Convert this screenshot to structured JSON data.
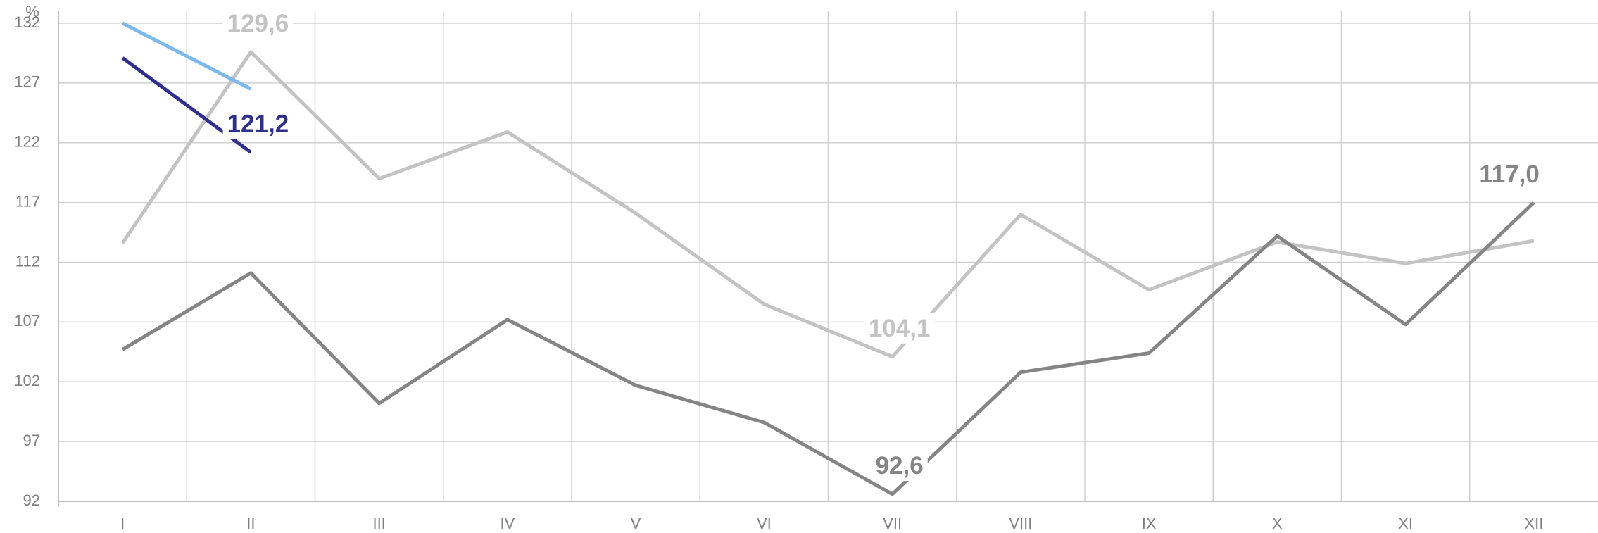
{
  "chart_data": {
    "type": "line",
    "y_label": "%",
    "categories": [
      "I",
      "II",
      "III",
      "IV",
      "V",
      "VI",
      "VII",
      "VIII",
      "IX",
      "X",
      "XI",
      "XII"
    ],
    "series": [
      {
        "color": "#c3c3c3",
        "values": [
          113.6,
          129.6,
          119.0,
          122.9,
          116.1,
          108.5,
          104.1,
          116.0,
          109.7,
          113.7,
          111.9,
          113.8
        ],
        "value_labels": [
          null,
          "129,6",
          null,
          null,
          null,
          null,
          "104,1",
          null,
          null,
          null,
          null,
          null
        ]
      },
      {
        "color": "#858585",
        "values": [
          104.7,
          111.1,
          100.2,
          107.2,
          101.7,
          98.6,
          92.6,
          102.8,
          104.4,
          114.2,
          106.8,
          117.0
        ],
        "value_labels": [
          null,
          null,
          null,
          null,
          null,
          null,
          "92,6",
          null,
          null,
          null,
          null,
          "117,0"
        ]
      },
      {
        "color": "#2f2f8c",
        "values": [
          129.1,
          121.2,
          null,
          null,
          null,
          null,
          null,
          null,
          null,
          null,
          null,
          null
        ],
        "value_labels": [
          null,
          "121,2",
          null,
          null,
          null,
          null,
          null,
          null,
          null,
          null,
          null,
          null
        ]
      },
      {
        "color": "#7ab8ee",
        "values": [
          132.0,
          126.5,
          null,
          null,
          null,
          null,
          null,
          null,
          null,
          null,
          null,
          null
        ]
      }
    ],
    "ylim": [
      92,
      132
    ],
    "yticks": [
      92,
      97,
      102,
      107,
      112,
      117,
      122,
      127,
      132
    ],
    "grid": true
  }
}
